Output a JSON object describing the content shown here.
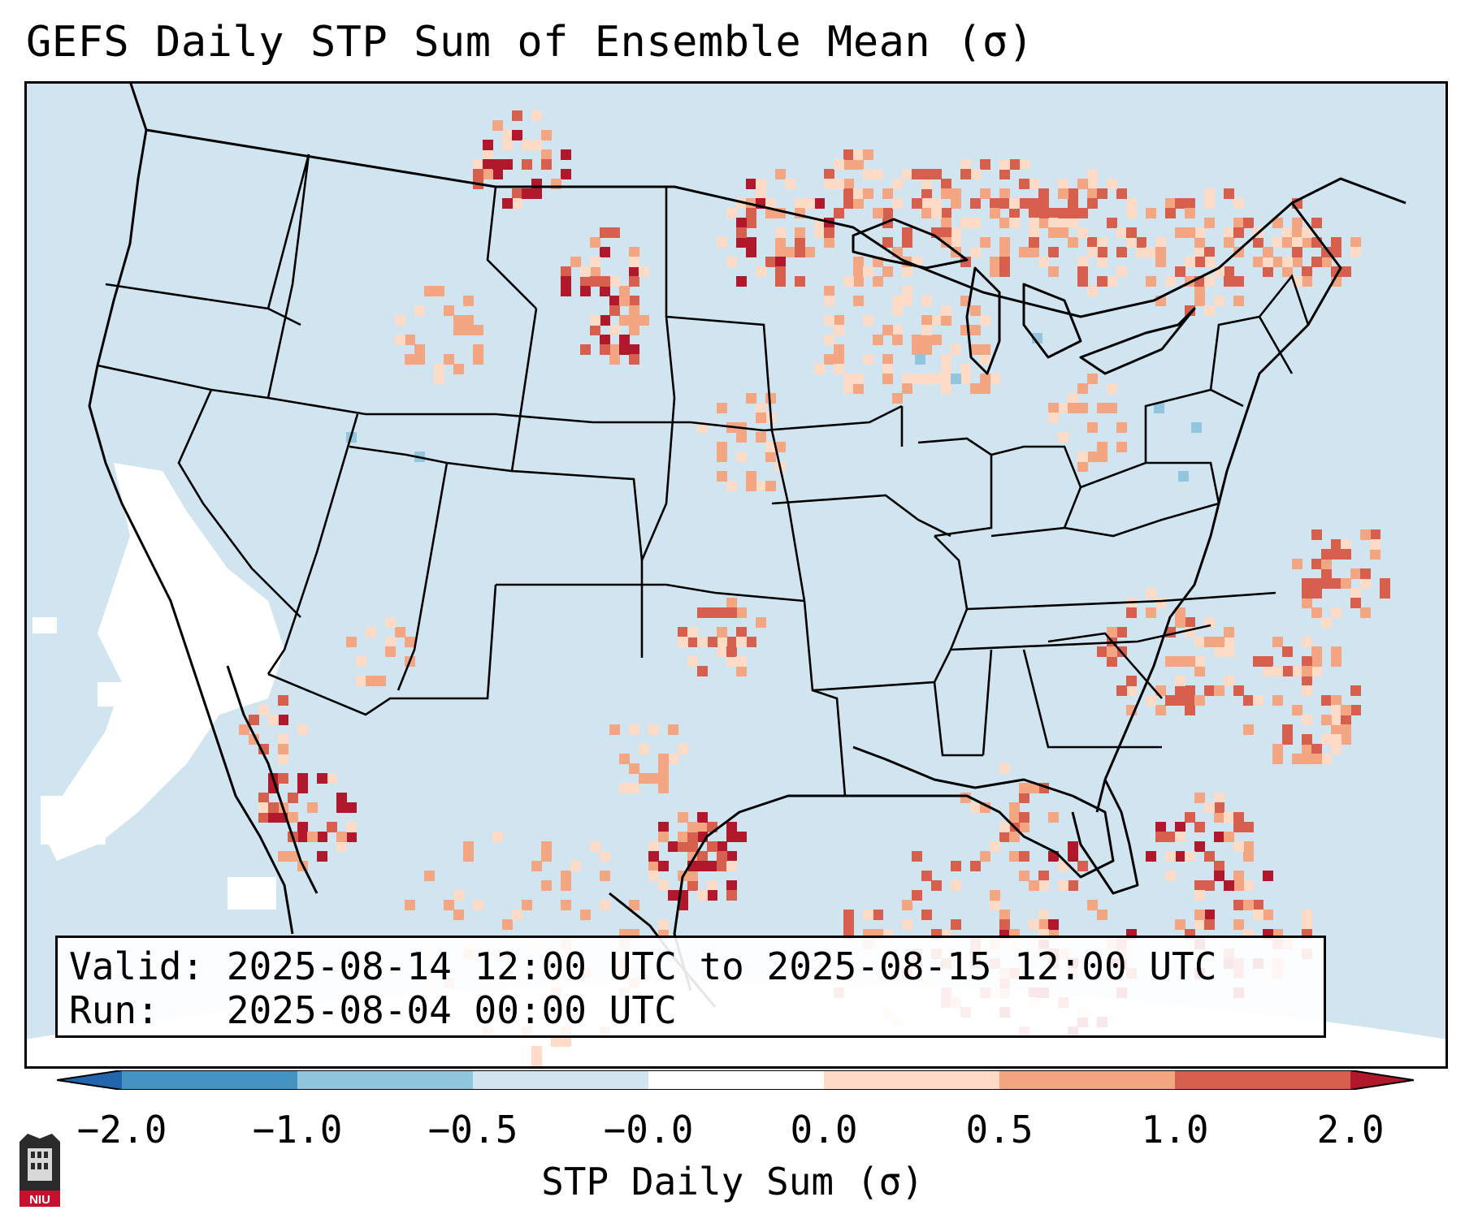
{
  "title": "GEFS Daily STP Sum of Ensemble Mean (σ)",
  "valid_label": "Valid:",
  "valid_value": "2025-08-14 12:00 UTC to 2025-08-15 12:00 UTC",
  "run_label": "Run:",
  "run_value": "2025-08-04 00:00 UTC",
  "colorbar": {
    "label": "STP Daily Sum (σ)",
    "ticks": [
      "−2.0",
      "−1.0",
      "−0.5",
      "−0.0",
      "0.0",
      "0.5",
      "1.0",
      "2.0"
    ],
    "colors": {
      "extend_low": "#2166ac",
      "bin_m2_m1": "#4393c3",
      "bin_m1_m05": "#92c5de",
      "bin_m05_m0": "#d1e5f0",
      "bin_m0_0": "#ffffff",
      "bin_0_05": "#fddbc7",
      "bin_05_1": "#f4a582",
      "bin_1_2": "#d6604d",
      "extend_high": "#b2182b"
    }
  },
  "map": {
    "background_color": "#d1e5f0",
    "region": "Contiguous United States, southern Canada, northern Mexico, Gulf of Mexico, Caribbean",
    "highlights": [
      {
        "area": "North Dakota / South Dakota border",
        "level": "1.0 to 2.0+"
      },
      {
        "area": "Northern Minnesota / Ontario",
        "level": "0.5 to 2.0"
      },
      {
        "area": "Quebec",
        "level": "0.5 to 1.0"
      },
      {
        "area": "Western Gulf of Mexico",
        "level": "1.0 to 2.0"
      },
      {
        "area": "Bahamas / Florida Straits",
        "level": "1.0 to 2.0+"
      },
      {
        "area": "Arkansas / Missouri",
        "level": "0.5 to 1.0"
      },
      {
        "area": "Offshore California",
        "level": "-0.0 to 0.0"
      }
    ]
  },
  "logo": {
    "text": "NIU"
  }
}
